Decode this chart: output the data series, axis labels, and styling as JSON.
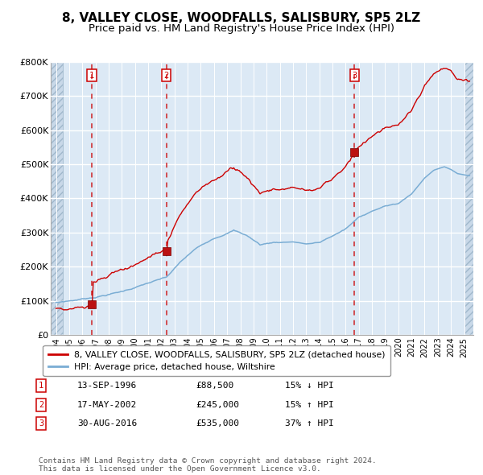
{
  "title": "8, VALLEY CLOSE, WOODFALLS, SALISBURY, SP5 2LZ",
  "subtitle": "Price paid vs. HM Land Registry's House Price Index (HPI)",
  "legend_red": "8, VALLEY CLOSE, WOODFALLS, SALISBURY, SP5 2LZ (detached house)",
  "legend_blue": "HPI: Average price, detached house, Wiltshire",
  "transactions": [
    {
      "num": 1,
      "date": "13-SEP-1996",
      "price": 88500,
      "pct": "15%",
      "dir": "↓"
    },
    {
      "num": 2,
      "date": "17-MAY-2002",
      "price": 245000,
      "pct": "15%",
      "dir": "↑"
    },
    {
      "num": 3,
      "date": "30-AUG-2016",
      "price": 535000,
      "pct": "37%",
      "dir": "↑"
    }
  ],
  "transaction_years": [
    1996.71,
    2002.38,
    2016.67
  ],
  "transaction_prices": [
    88500,
    245000,
    535000
  ],
  "copyright": "Contains HM Land Registry data © Crown copyright and database right 2024.\nThis data is licensed under the Open Government Licence v3.0.",
  "ylim": [
    0,
    800000
  ],
  "xlim_start": 1993.6,
  "xlim_end": 2025.7,
  "background_color": "#dce9f5",
  "grid_color": "#ffffff",
  "red_line_color": "#cc0000",
  "blue_line_color": "#7aadd4",
  "dashed_vline_color": "#cc0000",
  "title_fontsize": 11,
  "subtitle_fontsize": 9.5,
  "ytick_labels": [
    "£0",
    "£100K",
    "£200K",
    "£300K",
    "£400K",
    "£500K",
    "£600K",
    "£700K",
    "£800K"
  ],
  "ytick_values": [
    0,
    100000,
    200000,
    300000,
    400000,
    500000,
    600000,
    700000,
    800000
  ],
  "hatch_left_end": 1994.5,
  "hatch_right_start": 2025.0
}
